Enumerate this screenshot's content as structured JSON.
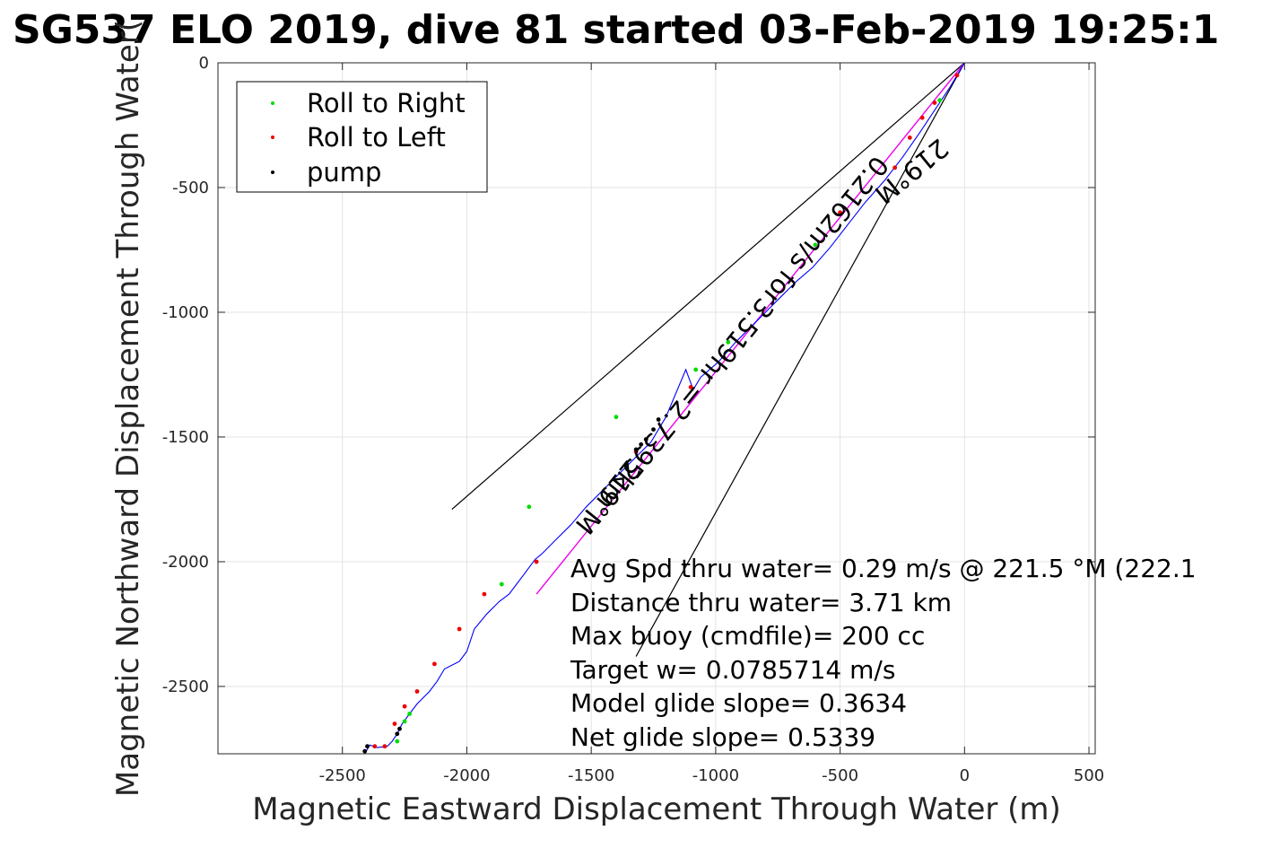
{
  "chart_data": {
    "type": "line",
    "title": "SG537 ELO 2019, dive 81 started 03-Feb-2019 19:25:1",
    "xlabel": "Magnetic Eastward Displacement Through Water (m)",
    "ylabel": "Magnetic Northward Displacement Through Water(",
    "xlim": [
      -3000,
      525
    ],
    "ylim": [
      -2770,
      0
    ],
    "x_ticks": [
      -2500,
      -2000,
      -1500,
      -1000,
      -500,
      0,
      500
    ],
    "y_ticks": [
      0,
      -500,
      -1000,
      -1500,
      -2000,
      -2500
    ],
    "grid": true,
    "legend": {
      "placement": "top-left",
      "entries": [
        {
          "label": "Roll to Right",
          "color": "#00dd00"
        },
        {
          "label": "Roll to Left",
          "color": "#ee0000"
        },
        {
          "label": "pump",
          "color": "#000000"
        }
      ]
    },
    "track": {
      "name": "track",
      "color": "#0000ff",
      "x": [
        0,
        -60,
        -120,
        -180,
        -250,
        -320,
        -400,
        -470,
        -540,
        -610,
        -680,
        -740,
        -800,
        -860,
        -920,
        -990,
        -1060,
        -1090,
        -1120,
        -1200,
        -1260,
        -1300,
        -1350,
        -1400,
        -1460,
        -1520,
        -1580,
        -1640,
        -1700,
        -1725,
        -1770,
        -1800,
        -1830,
        -1870,
        -1920,
        -1970,
        -2000,
        -2030,
        -2090,
        -2120,
        -2150,
        -2200,
        -2230,
        -2260,
        -2280,
        -2300,
        -2320,
        -2360,
        -2390,
        -2410
      ],
      "y": [
        0,
        -100,
        -190,
        -280,
        -380,
        -470,
        -560,
        -650,
        -740,
        -820,
        -880,
        -940,
        -1000,
        -1060,
        -1120,
        -1200,
        -1260,
        -1310,
        -1230,
        -1420,
        -1520,
        -1560,
        -1610,
        -1660,
        -1720,
        -1780,
        -1850,
        -1910,
        -1970,
        -1990,
        -2050,
        -2090,
        -2130,
        -2160,
        -2210,
        -2270,
        -2360,
        -2400,
        -2430,
        -2480,
        -2520,
        -2570,
        -2610,
        -2650,
        -2690,
        -2720,
        -2740,
        -2745,
        -2735,
        -2770
      ]
    },
    "roll_right": {
      "x": [
        -100,
        -600,
        -950,
        -1080,
        -1400,
        -1750,
        -1860,
        -2230,
        -2280,
        -2250
      ],
      "y": [
        -150,
        -730,
        -1120,
        -1230,
        -1420,
        -1780,
        -2090,
        -2610,
        -2720,
        -2640
      ]
    },
    "roll_left": {
      "x": [
        -30,
        -120,
        -170,
        -220,
        -280,
        -500,
        -1100,
        -1320,
        -1720,
        -1930,
        -2030,
        -2130,
        -2200,
        -2250,
        -2330,
        -2370,
        -2290
      ],
      "y": [
        -50,
        -160,
        -220,
        -300,
        -420,
        -600,
        -1300,
        -1560,
        -2000,
        -2130,
        -2270,
        -2410,
        -2520,
        -2580,
        -2740,
        -2740,
        -2650
      ]
    },
    "pump": {
      "x": [
        -1230,
        -1250,
        -1280,
        -1300,
        -1320,
        -2270,
        -2280,
        -2400,
        -2410
      ],
      "y": [
        -1430,
        -1470,
        -1510,
        -1530,
        -1550,
        -2670,
        -2690,
        -2740,
        -2760
      ]
    },
    "heading_line": {
      "name": "heading",
      "color": "#ee00ee",
      "x": [
        0,
        -1720
      ],
      "y": [
        0,
        -2130
      ]
    },
    "cone_lines": {
      "color": "#000000",
      "lines": [
        {
          "x": [
            0,
            -2060
          ],
          "y": [
            0,
            -1790
          ]
        },
        {
          "x": [
            0,
            -1320
          ],
          "y": [
            0,
            -2380
          ]
        }
      ]
    },
    "rotated_annotations": {
      "top": "0.2162m/s for3.519hr =2.7395km",
      "top_heading": "219°M",
      "bottom": "2.7395km",
      "bottom_heading": "219°M"
    },
    "annotations": [
      "Avg Spd thru water=  0.29 m/s @ 221.5 °M (222.1",
      "Distance thru water=  3.71 km",
      "Max buoy (cmdfile)= 200 cc",
      "Target w= 0.0785714 m/s",
      "Model glide slope= 0.3634",
      "Net glide slope= 0.5339"
    ]
  }
}
